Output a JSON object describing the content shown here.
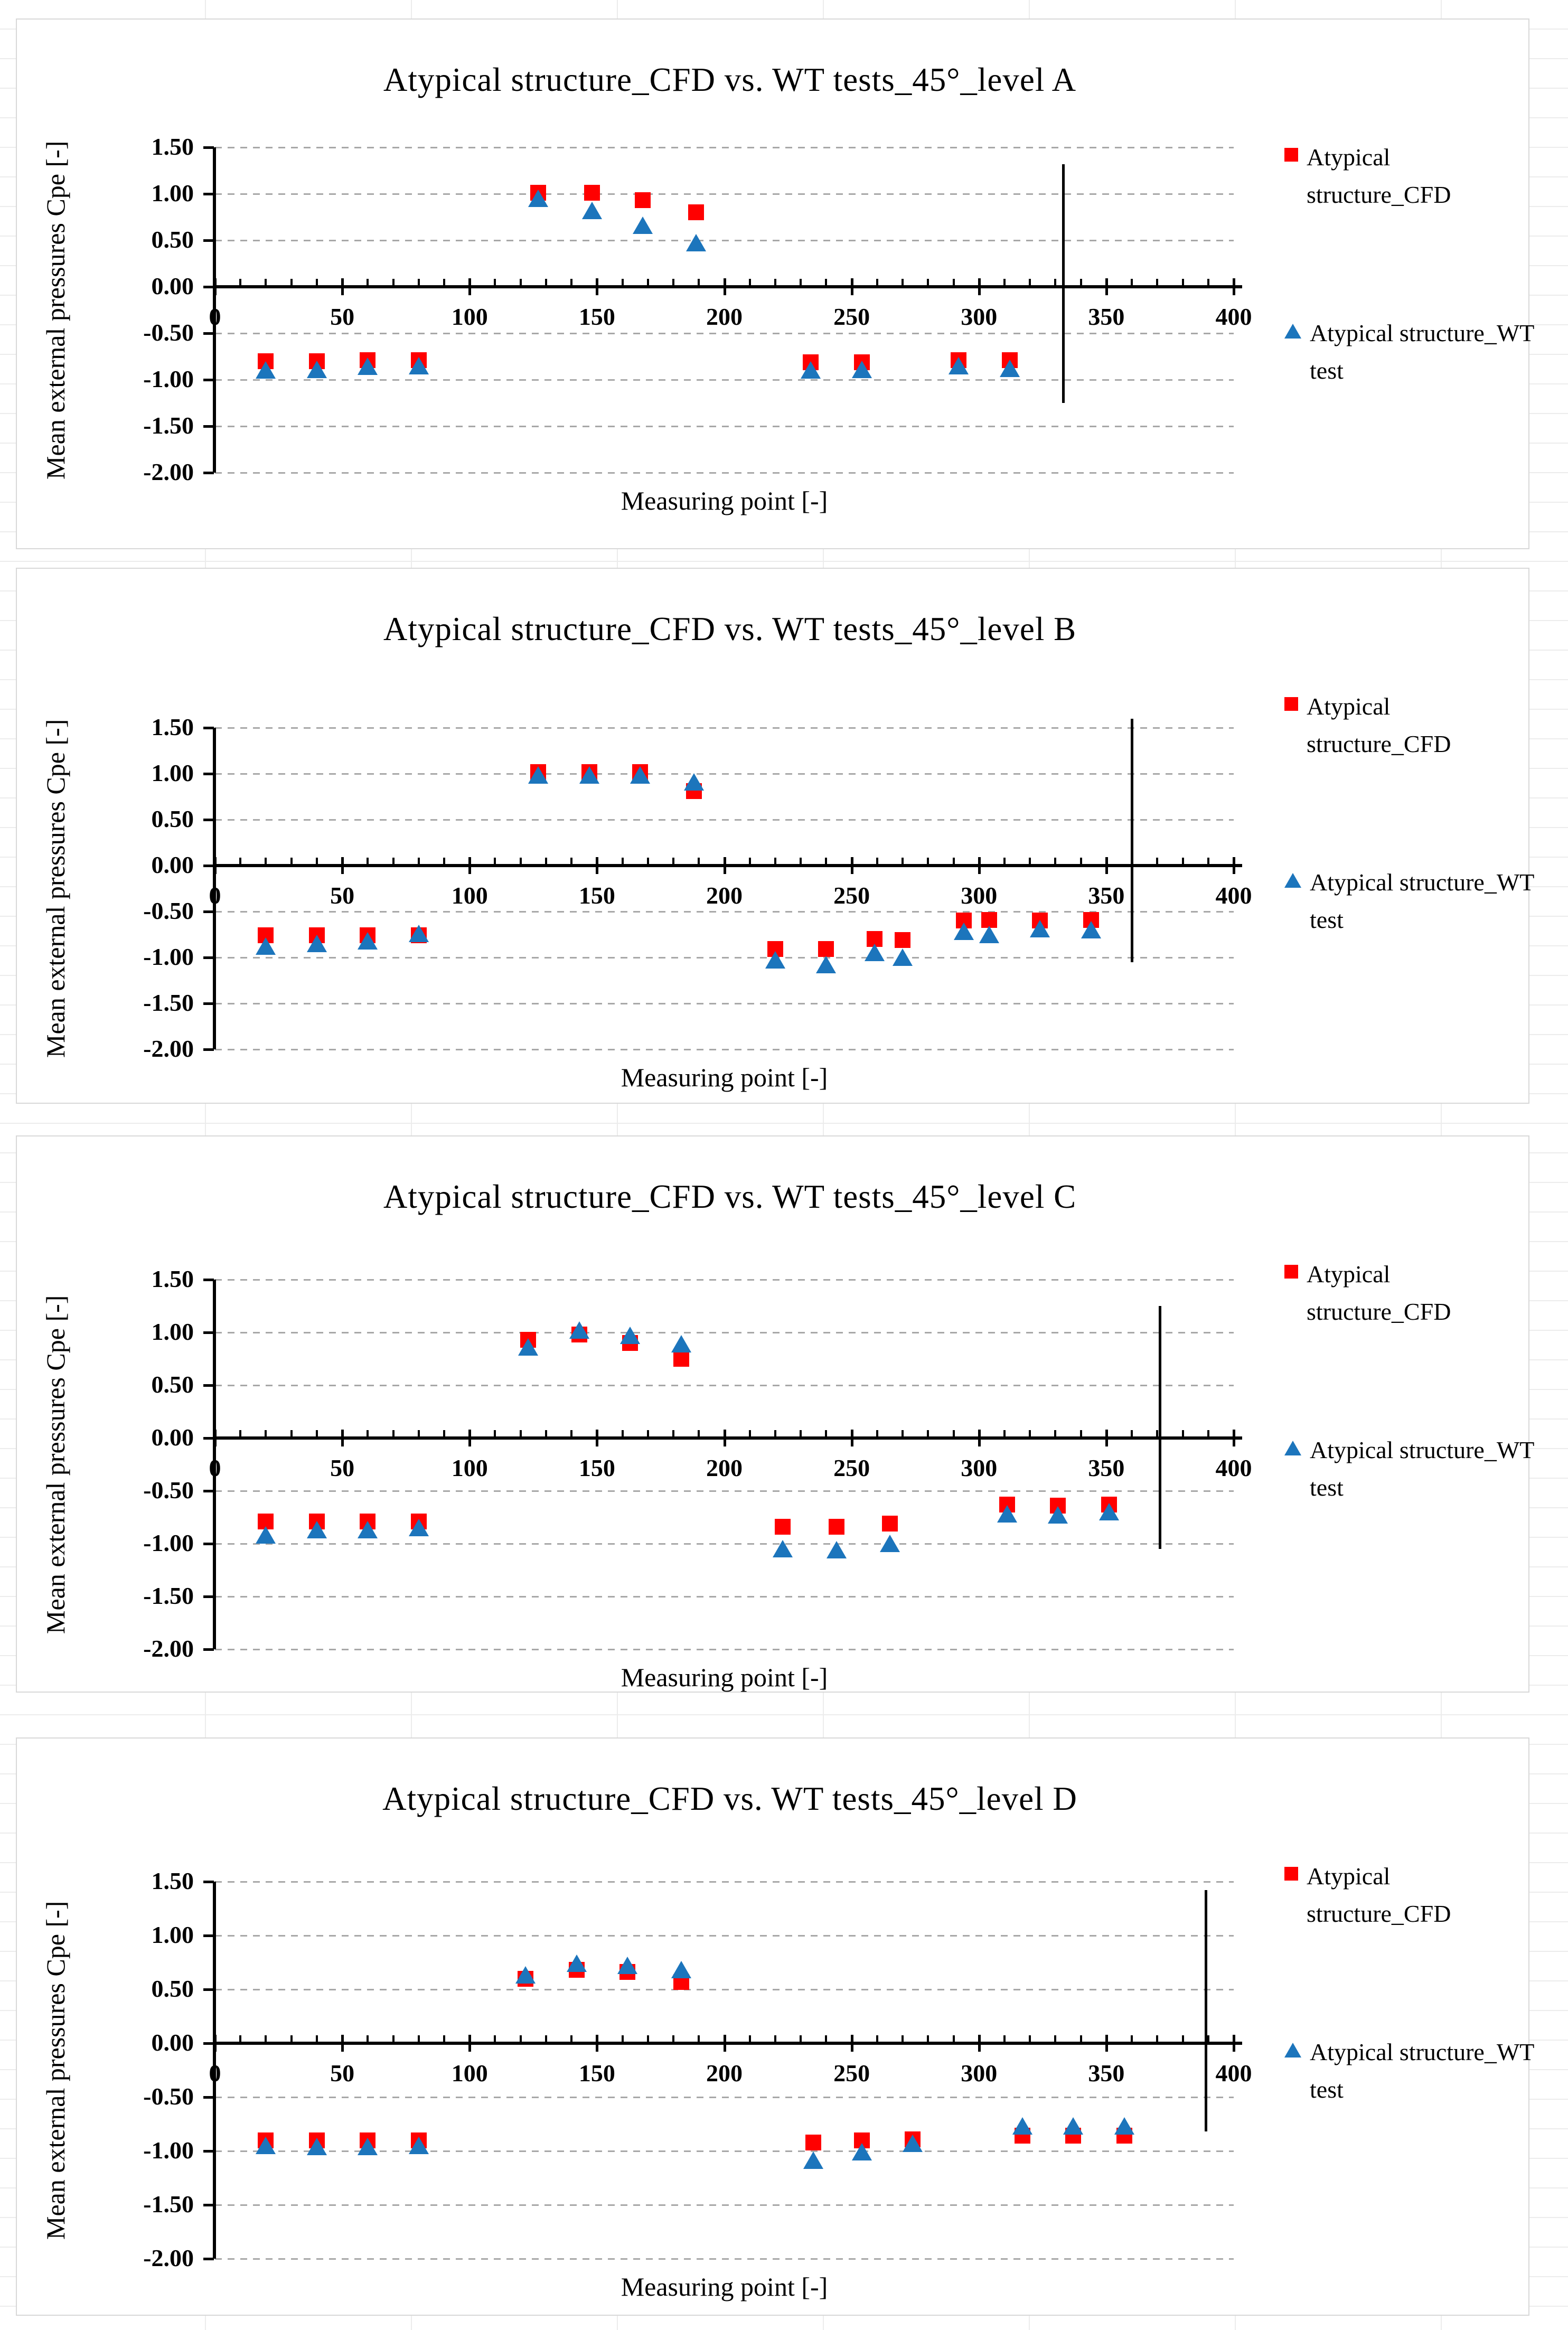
{
  "colors": {
    "cfd_red": "#ff0000",
    "wt_blue": "#1c75bc",
    "gridline_gray": "#a8a8a8",
    "axis_black": "#000000",
    "panel_border": "#d8d8d8"
  },
  "axis": {
    "x_label": "Measuring point [-]",
    "y_label": "Mean external pressures Cpe [-]",
    "x_tick_labels": [
      "0",
      "50",
      "100",
      "150",
      "200",
      "250",
      "300",
      "350",
      "400"
    ],
    "x_tick_values": [
      0,
      50,
      100,
      150,
      200,
      250,
      300,
      350,
      400
    ],
    "y_tick_labels": [
      "1.50",
      "1.00",
      "0.50",
      "0.00",
      "-0.50",
      "-1.00",
      "-1.50",
      "-2.00"
    ],
    "y_tick_values": [
      1.5,
      1.0,
      0.5,
      0,
      -0.5,
      -1.0,
      -1.5,
      -2.0
    ],
    "xlim": [
      0,
      400
    ],
    "ylim": [
      -2.0,
      1.5
    ],
    "grid": "dashed horizontal"
  },
  "legend": [
    {
      "label": "Atypical structure_CFD",
      "marker": "square",
      "color": "#ff0000"
    },
    {
      "label": "Atypical structure_WT test",
      "marker": "triangle",
      "color": "#1c75bc"
    }
  ],
  "chart_data": [
    {
      "type": "scatter",
      "title": "Atypical structure_CFD vs. WT tests_45°_level A",
      "xlabel": "Measuring point [-]",
      "ylabel": "Mean external pressures Cpe [-]",
      "xlim": [
        0,
        400
      ],
      "ylim": [
        -2.0,
        1.5
      ],
      "legend_position": "right",
      "annotation_line": {
        "x": 333,
        "y_top": 1.32,
        "y_bottom": -1.25
      },
      "series": [
        {
          "name": "Atypical structure_CFD",
          "marker": "square",
          "color": "#ff0000",
          "points": [
            [
              20,
              -0.8
            ],
            [
              40,
              -0.8
            ],
            [
              60,
              -0.79
            ],
            [
              80,
              -0.79
            ],
            [
              127,
              1.01
            ],
            [
              148,
              1.01
            ],
            [
              168,
              0.93
            ],
            [
              189,
              0.8
            ],
            [
              234,
              -0.81
            ],
            [
              254,
              -0.81
            ],
            [
              292,
              -0.79
            ],
            [
              312,
              -0.79
            ]
          ]
        },
        {
          "name": "Atypical structure_WT test",
          "marker": "triangle",
          "color": "#1c75bc",
          "points": [
            [
              20,
              -0.9
            ],
            [
              40,
              -0.89
            ],
            [
              60,
              -0.86
            ],
            [
              80,
              -0.85
            ],
            [
              127,
              0.95
            ],
            [
              148,
              0.82
            ],
            [
              168,
              0.66
            ],
            [
              189,
              0.47
            ],
            [
              234,
              -0.9
            ],
            [
              254,
              -0.89
            ],
            [
              292,
              -0.85
            ],
            [
              312,
              -0.88
            ]
          ]
        }
      ]
    },
    {
      "type": "scatter",
      "title": "Atypical structure_CFD vs. WT tests_45°_level B",
      "xlabel": "Measuring point [-]",
      "ylabel": "Mean external pressures Cpe [-]",
      "xlim": [
        0,
        400
      ],
      "ylim": [
        -2.0,
        1.5
      ],
      "legend_position": "right",
      "annotation_line": {
        "x": 360,
        "y_top": 1.6,
        "y_bottom": -1.05
      },
      "series": [
        {
          "name": "Atypical structure_CFD",
          "marker": "square",
          "color": "#ff0000",
          "points": [
            [
              20,
              -0.76
            ],
            [
              40,
              -0.76
            ],
            [
              60,
              -0.76
            ],
            [
              80,
              -0.76
            ],
            [
              127,
              1.02
            ],
            [
              147,
              1.02
            ],
            [
              167,
              1.02
            ],
            [
              188,
              0.81
            ],
            [
              220,
              -0.91
            ],
            [
              240,
              -0.91
            ],
            [
              259,
              -0.8
            ],
            [
              270,
              -0.81
            ],
            [
              294,
              -0.6
            ],
            [
              304,
              -0.59
            ],
            [
              324,
              -0.6
            ],
            [
              344,
              -0.59
            ]
          ]
        },
        {
          "name": "Atypical structure_WT test",
          "marker": "triangle",
          "color": "#1c75bc",
          "points": [
            [
              20,
              -0.88
            ],
            [
              40,
              -0.85
            ],
            [
              60,
              -0.82
            ],
            [
              80,
              -0.74
            ],
            [
              127,
              0.98
            ],
            [
              147,
              0.98
            ],
            [
              167,
              0.98
            ],
            [
              188,
              0.91
            ],
            [
              220,
              -1.03
            ],
            [
              240,
              -1.08
            ],
            [
              259,
              -0.95
            ],
            [
              270,
              -1.0
            ],
            [
              294,
              -0.72
            ],
            [
              304,
              -0.75
            ],
            [
              324,
              -0.69
            ],
            [
              344,
              -0.7
            ]
          ]
        }
      ]
    },
    {
      "type": "scatter",
      "title": "Atypical structure_CFD vs. WT tests_45°_level C",
      "xlabel": "Measuring point [-]",
      "ylabel": "Mean external pressures Cpe [-]",
      "xlim": [
        0,
        400
      ],
      "ylim": [
        -2.0,
        1.5
      ],
      "legend_position": "right",
      "annotation_line": {
        "x": 371,
        "y_top": 1.25,
        "y_bottom": -1.05
      },
      "series": [
        {
          "name": "Atypical structure_CFD",
          "marker": "square",
          "color": "#ff0000",
          "points": [
            [
              20,
              -0.79
            ],
            [
              40,
              -0.79
            ],
            [
              60,
              -0.79
            ],
            [
              80,
              -0.79
            ],
            [
              123,
              0.93
            ],
            [
              143,
              0.98
            ],
            [
              163,
              0.9
            ],
            [
              183,
              0.75
            ],
            [
              223,
              -0.84
            ],
            [
              244,
              -0.84
            ],
            [
              265,
              -0.81
            ],
            [
              311,
              -0.63
            ],
            [
              331,
              -0.64
            ],
            [
              351,
              -0.63
            ]
          ]
        },
        {
          "name": "Atypical structure_WT test",
          "marker": "triangle",
          "color": "#1c75bc",
          "points": [
            [
              20,
              -0.92
            ],
            [
              40,
              -0.87
            ],
            [
              60,
              -0.87
            ],
            [
              80,
              -0.85
            ],
            [
              123,
              0.86
            ],
            [
              143,
              1.02
            ],
            [
              163,
              0.97
            ],
            [
              183,
              0.89
            ],
            [
              223,
              -1.05
            ],
            [
              244,
              -1.06
            ],
            [
              265,
              -1.0
            ],
            [
              311,
              -0.72
            ],
            [
              331,
              -0.73
            ],
            [
              351,
              -0.7
            ]
          ]
        }
      ]
    },
    {
      "type": "scatter",
      "title": "Atypical structure_CFD vs. WT tests_45°_level D",
      "xlabel": "Measuring point [-]",
      "ylabel": "Mean external pressures Cpe [-]",
      "xlim": [
        0,
        400
      ],
      "ylim": [
        -2.0,
        1.5
      ],
      "legend_position": "right",
      "annotation_line": {
        "x": 389,
        "y_top": 1.42,
        "y_bottom": -0.82
      },
      "series": [
        {
          "name": "Atypical structure_CFD",
          "marker": "square",
          "color": "#ff0000",
          "points": [
            [
              20,
              -0.9
            ],
            [
              40,
              -0.9
            ],
            [
              60,
              -0.9
            ],
            [
              80,
              -0.9
            ],
            [
              122,
              0.6
            ],
            [
              142,
              0.68
            ],
            [
              162,
              0.66
            ],
            [
              183,
              0.57
            ],
            [
              235,
              -0.92
            ],
            [
              254,
              -0.9
            ],
            [
              274,
              -0.89
            ],
            [
              317,
              -0.86
            ],
            [
              337,
              -0.86
            ],
            [
              357,
              -0.86
            ]
          ]
        },
        {
          "name": "Atypical structure_WT test",
          "marker": "triangle",
          "color": "#1c75bc",
          "points": [
            [
              20,
              -0.95
            ],
            [
              40,
              -0.96
            ],
            [
              60,
              -0.96
            ],
            [
              80,
              -0.95
            ],
            [
              122,
              0.63
            ],
            [
              142,
              0.74
            ],
            [
              162,
              0.72
            ],
            [
              183,
              0.68
            ],
            [
              235,
              -1.09
            ],
            [
              254,
              -1.01
            ],
            [
              274,
              -0.93
            ],
            [
              317,
              -0.77
            ],
            [
              337,
              -0.77
            ],
            [
              357,
              -0.77
            ]
          ]
        }
      ]
    }
  ]
}
